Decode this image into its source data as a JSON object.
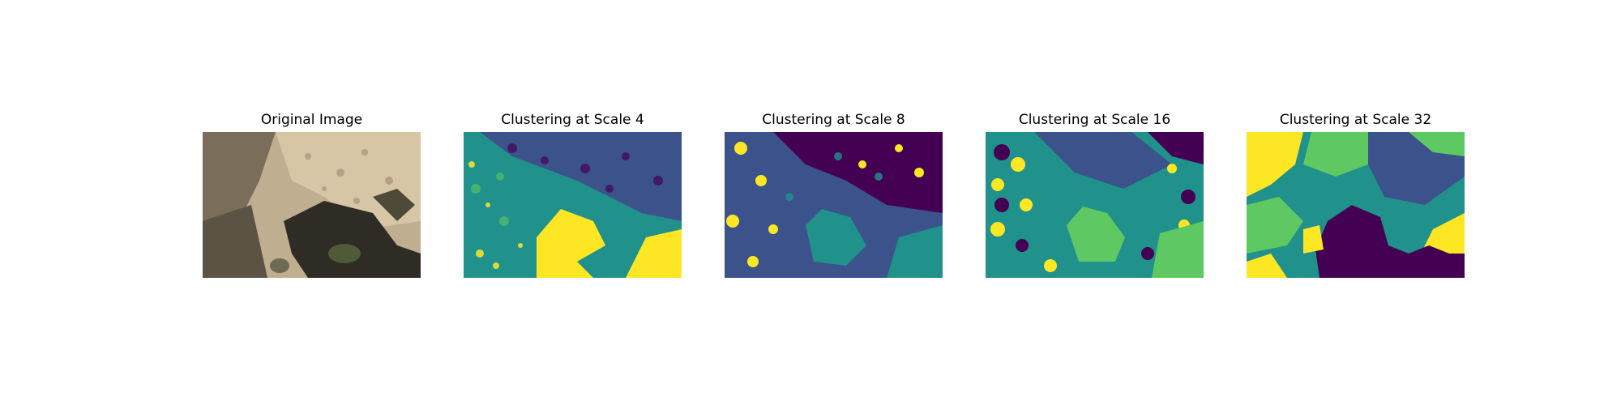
{
  "figure": {
    "panels": [
      {
        "title": "Original Image",
        "kind": "photo"
      },
      {
        "title": "Clustering at Scale 4",
        "kind": "segmentation",
        "scale": 4
      },
      {
        "title": "Clustering at Scale 8",
        "kind": "segmentation",
        "scale": 8
      },
      {
        "title": "Clustering at Scale 16",
        "kind": "segmentation",
        "scale": 16
      },
      {
        "title": "Clustering at Scale 32",
        "kind": "segmentation",
        "scale": 32
      }
    ],
    "cluster_colors": [
      "#440154",
      "#3b528b",
      "#21918c",
      "#5ec962",
      "#fde725"
    ],
    "photo_colors": [
      "#bfae8f",
      "#d6c6a6",
      "#8f806a",
      "#4a4438",
      "#2b2a24",
      "#5b5a3a"
    ]
  }
}
